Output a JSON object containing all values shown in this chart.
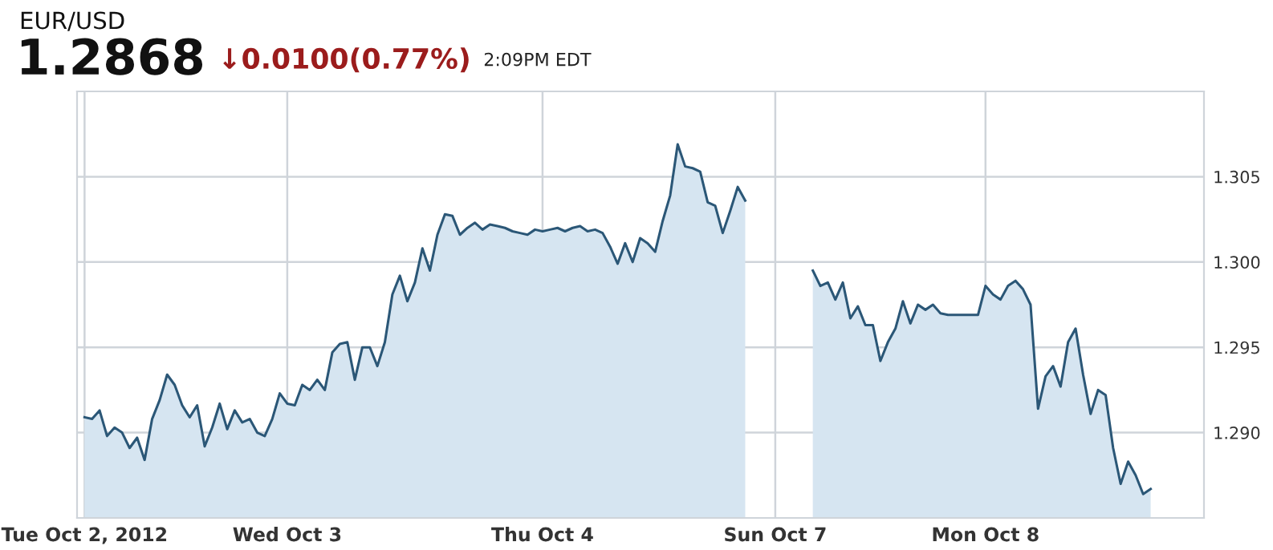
{
  "chart_data": {
    "type": "area",
    "title": "EUR/USD",
    "annotations": [
      "1.2868",
      "↓0.0100(0.77%)",
      "2:09PM EDT"
    ],
    "categories": [
      "Tue Oct 2, 2012",
      null,
      null,
      null,
      null,
      null,
      null,
      null,
      null,
      null,
      null,
      null,
      null,
      null,
      null,
      null,
      null,
      null,
      null,
      null,
      null,
      null,
      null,
      null,
      null,
      null,
      null,
      "Wed Oct 3",
      null,
      null,
      null,
      null,
      null,
      null,
      null,
      null,
      null,
      null,
      null,
      null,
      null,
      null,
      null,
      null,
      null,
      null,
      null,
      null,
      null,
      null,
      null,
      null,
      null,
      null,
      null,
      null,
      null,
      null,
      null,
      null,
      null,
      "Thu Oct 4",
      null,
      null,
      null,
      null,
      null,
      null,
      null,
      null,
      null,
      null,
      null,
      null,
      null,
      null,
      null,
      null,
      null,
      null,
      null,
      null,
      null,
      null,
      null,
      null,
      null,
      null,
      null,
      null,
      null,
      null,
      "Sun Oct 7",
      null,
      null,
      null,
      null,
      null,
      null,
      null,
      null,
      null,
      null,
      null,
      null,
      null,
      null,
      null,
      null,
      null,
      null,
      null,
      null,
      null,
      null,
      null,
      null,
      null,
      null,
      null,
      "Mon Oct 8",
      null,
      null,
      null,
      null,
      null,
      null,
      null,
      null,
      null,
      null,
      null,
      null,
      null,
      null,
      null,
      null,
      null,
      null,
      null,
      null,
      null,
      null
    ],
    "series": [
      {
        "color": "#2b5777",
        "values": [
          1.2909,
          1.2908,
          1.2913,
          1.2898,
          1.2903,
          1.29,
          1.2891,
          1.2897,
          1.2884,
          1.2908,
          1.2919,
          1.2934,
          1.2928,
          1.2916,
          1.2909,
          1.2916,
          1.2892,
          1.2903,
          1.2917,
          1.2902,
          1.2913,
          1.2906,
          1.2908,
          1.29,
          1.2898,
          1.2908,
          1.2923,
          1.2917,
          1.2916,
          1.2928,
          1.2925,
          1.2931,
          1.2925,
          1.2947,
          1.2952,
          1.2953,
          1.2931,
          1.295,
          1.295,
          1.2939,
          1.2953,
          1.2981,
          1.2992,
          1.2977,
          1.2988,
          1.3008,
          1.2995,
          1.3016,
          1.3028,
          1.3027,
          1.3016,
          1.302,
          1.3023,
          1.3019,
          1.3022,
          1.3021,
          1.302,
          1.3018,
          1.3017,
          1.3016,
          1.3019,
          1.3018,
          1.3019,
          1.302,
          1.3018,
          1.302,
          1.3021,
          1.3018,
          1.3019,
          1.3017,
          1.3009,
          1.2999,
          1.3011,
          1.3,
          1.3014,
          1.3011,
          1.3006,
          1.3024,
          1.3039,
          1.3069,
          1.3056,
          1.3055,
          1.3053,
          1.3035,
          1.3033,
          1.3017,
          1.303,
          1.3044,
          1.3036,
          null,
          null,
          null,
          null,
          null,
          null,
          null,
          null,
          1.2995,
          1.2986,
          1.2988,
          1.2978,
          1.2988,
          1.2967,
          1.2974,
          1.2963,
          1.2963,
          1.2942,
          1.2953,
          1.2961,
          1.2977,
          1.2964,
          1.2975,
          1.2972,
          1.2975,
          1.297,
          1.2969,
          1.2969,
          1.2969,
          1.2969,
          1.2969,
          1.2986,
          1.2981,
          1.2978,
          1.2986,
          1.2989,
          1.2984,
          1.2975,
          1.2914,
          1.2933,
          1.2939,
          1.2927,
          1.2953,
          1.2961,
          1.2934,
          1.2911,
          1.2925,
          1.2922,
          1.2891,
          1.287,
          1.2883,
          1.2875,
          1.2864,
          1.2867
        ]
      }
    ],
    "ylim": [
      1.285,
      1.31
    ],
    "yticks": [
      {
        "value": 1.29,
        "label": "1.290"
      },
      {
        "value": 1.295,
        "label": "1.295"
      },
      {
        "value": 1.3,
        "label": "1.300"
      },
      {
        "value": 1.305,
        "label": "1.305"
      }
    ],
    "grid": true,
    "marker": "none",
    "line_style": "solid"
  }
}
